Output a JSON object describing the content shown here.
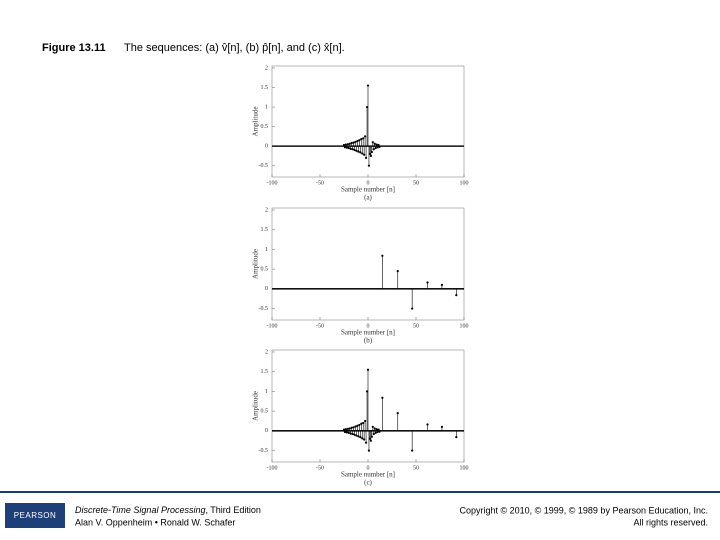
{
  "header": {
    "figure_label": "Figure 13.11",
    "caption": "The sequences: (a) v̂[n], (b) p̂[n], and (c) x̂[n]."
  },
  "chart_data": [
    {
      "type": "stem",
      "subtitle": "(a)",
      "xlabel": "Sample number [n]",
      "ylabel": "Amplitude",
      "color": "#000000",
      "xlim": [
        -100,
        100
      ],
      "ylim": [
        -0.79,
        2.05
      ],
      "xticks": [
        -100,
        -50,
        0,
        50,
        100
      ],
      "yticks": [
        -0.5,
        0,
        0.5,
        1,
        1.5,
        2
      ],
      "x": [
        -25,
        -24,
        -23,
        -22,
        -21,
        -20,
        -19,
        -18,
        -17,
        -16,
        -15,
        -14,
        -13,
        -12,
        -11,
        -10,
        -9,
        -8,
        -7,
        -6,
        -5,
        -4,
        -3,
        -2,
        -1,
        0,
        1,
        2,
        3,
        4,
        5,
        6,
        7,
        8,
        9,
        10,
        11,
        12
      ],
      "values": [
        0.03,
        -0.03,
        0.04,
        -0.04,
        0.05,
        -0.05,
        0.06,
        -0.07,
        0.08,
        -0.08,
        0.09,
        -0.1,
        0.11,
        -0.12,
        0.13,
        -0.14,
        0.15,
        -0.16,
        0.18,
        -0.19,
        0.2,
        -0.22,
        0.25,
        -0.3,
        1.0,
        1.55,
        -0.5,
        -0.2,
        -0.25,
        -0.15,
        0.1,
        -0.08,
        0.06,
        -0.05,
        0.04,
        -0.03,
        0.03,
        -0.02
      ]
    },
    {
      "type": "stem",
      "subtitle": "(b)",
      "xlabel": "Sample number [n]",
      "ylabel": "Amplitude",
      "color": "#000000",
      "xlim": [
        -100,
        100
      ],
      "ylim": [
        -0.79,
        2.05
      ],
      "xticks": [
        -100,
        -50,
        0,
        50,
        100
      ],
      "yticks": [
        -0.5,
        0,
        0.5,
        1,
        1.5,
        2
      ],
      "x": [
        15,
        31,
        46,
        62,
        77,
        92
      ],
      "values": [
        0.84,
        0.45,
        -0.5,
        0.16,
        0.1,
        -0.16
      ]
    },
    {
      "type": "stem",
      "subtitle": "(c)",
      "xlabel": "Sample number [n]",
      "ylabel": "Amplitude",
      "color": "#000000",
      "xlim": [
        -100,
        100
      ],
      "ylim": [
        -0.79,
        2.05
      ],
      "xticks": [
        -100,
        -50,
        0,
        50,
        100
      ],
      "yticks": [
        -0.5,
        0,
        0.5,
        1,
        1.5,
        2
      ],
      "x": [
        -25,
        -24,
        -23,
        -22,
        -21,
        -20,
        -19,
        -18,
        -17,
        -16,
        -15,
        -14,
        -13,
        -12,
        -11,
        -10,
        -9,
        -8,
        -7,
        -6,
        -5,
        -4,
        -3,
        -2,
        -1,
        0,
        1,
        2,
        3,
        4,
        5,
        6,
        7,
        8,
        9,
        10,
        11,
        12,
        15,
        31,
        46,
        62,
        77,
        92
      ],
      "values": [
        0.03,
        -0.03,
        0.04,
        -0.04,
        0.05,
        -0.05,
        0.06,
        -0.07,
        0.08,
        -0.08,
        0.09,
        -0.1,
        0.11,
        -0.12,
        0.13,
        -0.14,
        0.15,
        -0.16,
        0.18,
        -0.19,
        0.2,
        -0.22,
        0.25,
        -0.3,
        1.0,
        1.55,
        -0.5,
        -0.2,
        -0.25,
        -0.15,
        0.1,
        -0.08,
        0.06,
        -0.05,
        0.04,
        -0.03,
        0.03,
        -0.02,
        0.84,
        0.45,
        -0.5,
        0.16,
        0.1,
        -0.16
      ]
    }
  ],
  "footer": {
    "logo": "PEARSON",
    "book_title": "Discrete-Time Signal Processing",
    "edition": ", Third Edition",
    "authors": "Alan V. Oppenheim • Ronald W. Schafer",
    "copyright": "Copyright © 2010, © 1999, © 1989 by Pearson Education, Inc.",
    "rights": "All rights reserved."
  }
}
